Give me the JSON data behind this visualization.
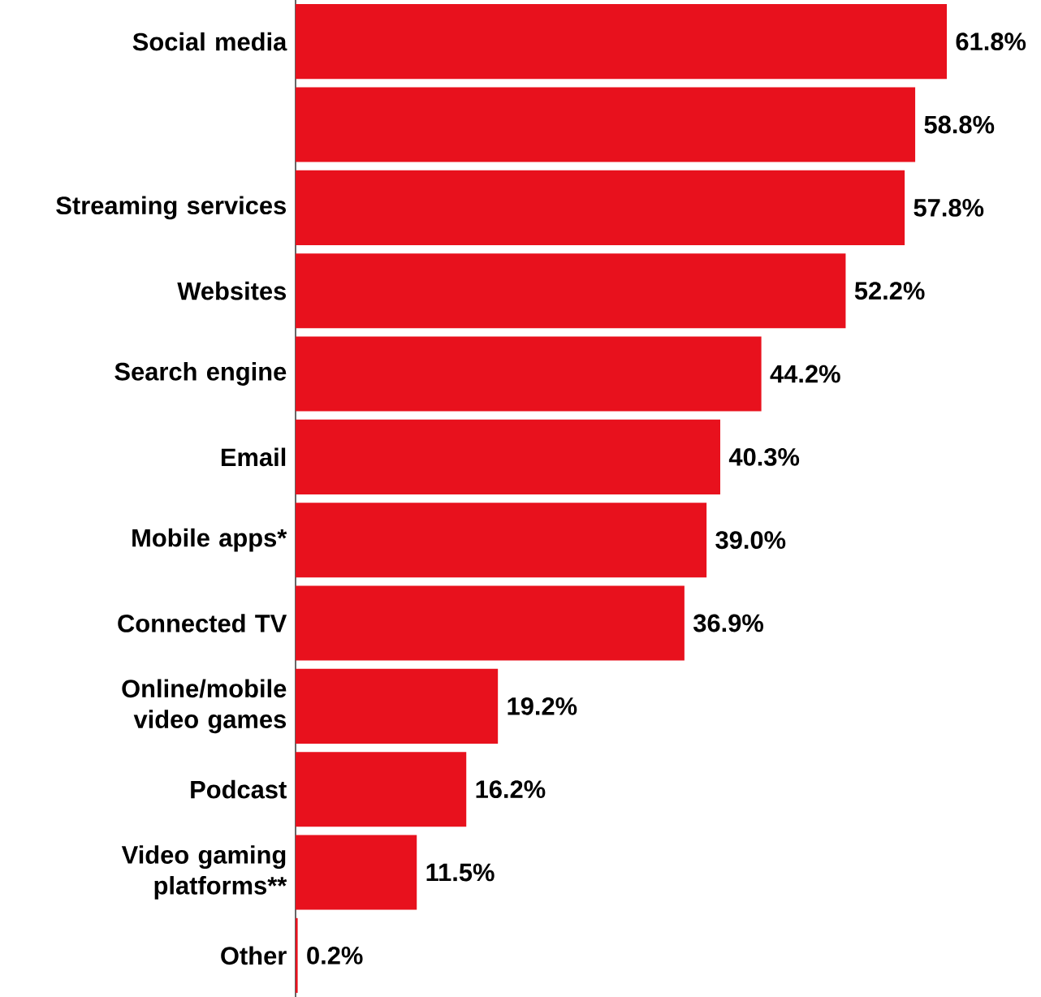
{
  "chart_data": {
    "type": "bar",
    "orientation": "horizontal",
    "categories": [
      "Social media",
      null,
      "Streaming services",
      "Websites",
      "Search engine",
      "Email",
      "Mobile apps*",
      "Connected TV",
      "Online/mobile video games",
      "Podcast",
      "Video gaming platforms**",
      "Other"
    ],
    "values": [
      61.8,
      58.8,
      57.8,
      52.2,
      44.2,
      40.3,
      39.0,
      36.9,
      19.2,
      16.2,
      11.5,
      0.2
    ],
    "value_labels": [
      "61.8%",
      "58.8%",
      "57.8%",
      "52.2%",
      "44.2%",
      "40.3%",
      "39.0%",
      "36.9%",
      "19.2%",
      "16.2%",
      "11.5%",
      "0.2%"
    ],
    "color": "#e8111d"
  }
}
